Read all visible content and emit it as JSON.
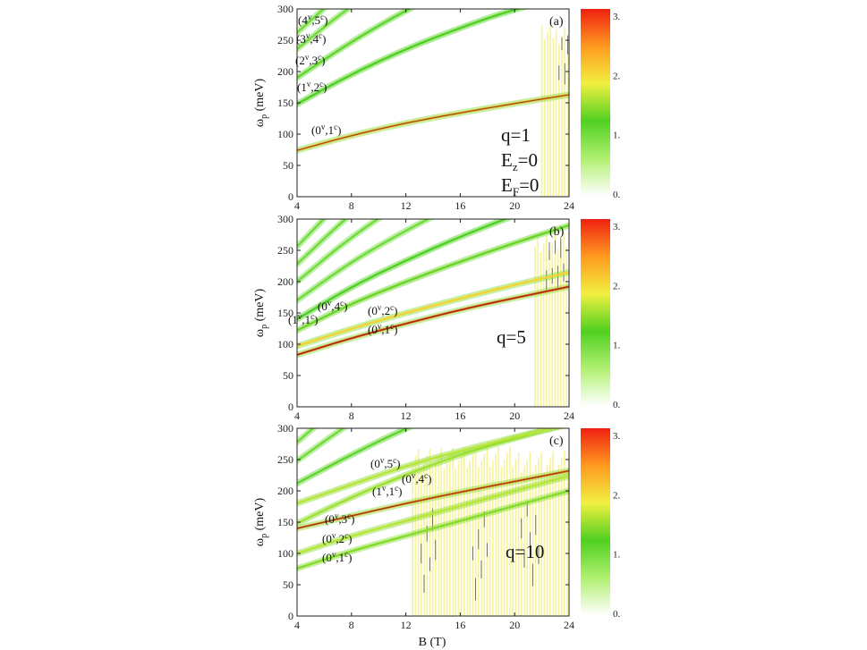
{
  "figure": {
    "xlabel": "B (T)",
    "colorbar_color_stops": [
      "#ffffff",
      "#b0f070",
      "#50d020",
      "#f0f040",
      "#ff9a20",
      "#ee2010"
    ]
  },
  "chart_data": [
    {
      "type": "heatmap",
      "panel_label": "(a)",
      "xlabel": "",
      "ylabel_main": "ω",
      "ylabel_sub": "p",
      "ylabel_unit": " (meV)",
      "xlim": [
        4,
        24
      ],
      "ylim": [
        0,
        300
      ],
      "xticks": [
        4,
        8,
        12,
        16,
        20,
        24
      ],
      "yticks": [
        0,
        50,
        100,
        150,
        200,
        250,
        300
      ],
      "colorbar_ticks": [
        "3.",
        "2.",
        "1.",
        "0."
      ],
      "params": [
        {
          "main": "q=1",
          "sub": ""
        },
        {
          "main": "E",
          "sub": "z",
          "tail": "=0"
        },
        {
          "main": "E",
          "sub": "F",
          "tail": "=0"
        }
      ],
      "series": [
        {
          "label": [
            "(0",
            "v",
            ",1",
            "c",
            ")"
          ],
          "x": [
            4,
            8,
            12,
            16,
            20,
            24
          ],
          "y": [
            74,
            98,
            118,
            134,
            149,
            163
          ],
          "intensity": 2.4
        },
        {
          "label": [
            "(1",
            "v",
            ",2",
            "c",
            ")"
          ],
          "x": [
            4,
            8,
            12,
            16,
            20,
            24
          ],
          "y": [
            148,
            196,
            236,
            270,
            300,
            320
          ],
          "intensity": 1.2
        },
        {
          "label": [
            "(2",
            "v",
            ",3",
            "c",
            ")"
          ],
          "x": [
            4,
            8,
            12,
            16,
            20,
            24
          ],
          "y": [
            190,
            248,
            298,
            340,
            370,
            395
          ],
          "intensity": 1.1
        },
        {
          "label": [
            "(3",
            "v",
            ",4",
            "c",
            ")"
          ],
          "x": [
            4,
            8,
            12,
            16,
            20,
            24
          ],
          "y": [
            236,
            306,
            360,
            400,
            440,
            470
          ],
          "intensity": 1.0
        },
        {
          "label": [
            "(4",
            "v",
            ",5",
            "c",
            ")"
          ],
          "x": [
            4,
            8,
            12,
            16,
            20,
            24
          ],
          "y": [
            262,
            340,
            400,
            450,
            490,
            520
          ],
          "intensity": 1.0
        }
      ],
      "damping_region": {
        "x_from": 22,
        "x_to": 24,
        "note": ""
      }
    },
    {
      "type": "heatmap",
      "panel_label": "(b)",
      "ylabel_main": "ω",
      "ylabel_sub": "p",
      "ylabel_unit": " (meV)",
      "xlim": [
        4,
        24
      ],
      "ylim": [
        0,
        300
      ],
      "xticks": [
        4,
        8,
        12,
        16,
        20,
        24
      ],
      "yticks": [
        0,
        50,
        100,
        150,
        200,
        250,
        300
      ],
      "colorbar_ticks": [
        "3.",
        "2.",
        "1.",
        "0."
      ],
      "params": [
        {
          "main": "q=5",
          "sub": ""
        }
      ],
      "series": [
        {
          "label": [
            "(0",
            "v",
            ",1",
            "c",
            ")"
          ],
          "x": [
            4,
            8,
            12,
            16,
            20,
            24
          ],
          "y": [
            83,
            110,
            133,
            155,
            174,
            192
          ],
          "intensity": 2.8
        },
        {
          "label": [
            "(0",
            "v",
            ",2",
            "c",
            ")"
          ],
          "x": [
            4,
            8,
            12,
            16,
            20,
            24
          ],
          "y": [
            97,
            125,
            150,
            173,
            195,
            215
          ],
          "intensity": 2.0
        },
        {
          "label": [
            "(1",
            "v",
            ",1",
            "c",
            ")"
          ],
          "x": [
            4,
            8,
            12,
            16,
            20,
            24
          ],
          "y": [
            122,
            165,
            200,
            232,
            262,
            290
          ],
          "intensity": 1.3
        },
        {
          "label": [
            "(0",
            "v",
            ",4",
            "c",
            ")"
          ],
          "x": [
            4,
            8,
            12,
            16,
            20,
            24
          ],
          "y": [
            140,
            192,
            234,
            272,
            306,
            338
          ],
          "intensity": 1.2
        },
        {
          "label": [],
          "x": [
            4,
            8,
            12,
            16,
            20,
            24
          ],
          "y": [
            170,
            232,
            282,
            326,
            366,
            402
          ],
          "intensity": 1.0
        },
        {
          "label": [],
          "x": [
            4,
            8,
            12,
            16,
            20,
            24
          ],
          "y": [
            200,
            272,
            330,
            380,
            426,
            468
          ],
          "intensity": 1.0
        },
        {
          "label": [],
          "x": [
            4,
            8,
            12,
            16,
            20,
            24
          ],
          "y": [
            228,
            310,
            376,
            432,
            484,
            530
          ],
          "intensity": 1.0
        },
        {
          "label": [],
          "x": [
            4,
            8,
            12,
            16,
            20,
            24
          ],
          "y": [
            256,
            346,
            420,
            484,
            540,
            592
          ],
          "intensity": 1.0
        }
      ],
      "damping_region": {
        "x_from": 21.5,
        "x_to": 24,
        "note": ""
      }
    },
    {
      "type": "heatmap",
      "panel_label": "(c)",
      "ylabel_main": "ω",
      "ylabel_sub": "p",
      "ylabel_unit": " (meV)",
      "xlim": [
        4,
        24
      ],
      "ylim": [
        0,
        300
      ],
      "xticks": [
        4,
        8,
        12,
        16,
        20,
        24
      ],
      "yticks": [
        0,
        50,
        100,
        150,
        200,
        250,
        300
      ],
      "colorbar_ticks": [
        "3.",
        "2.",
        "1.",
        "0."
      ],
      "params": [
        {
          "main": "q=10",
          "sub": ""
        }
      ],
      "series": [
        {
          "label": [
            "(0",
            "v",
            ",1",
            "c",
            ")"
          ],
          "x": [
            4,
            8,
            12,
            16,
            20,
            24
          ],
          "y": [
            76,
            104,
            128,
            152,
            176,
            200
          ],
          "intensity": 1.4
        },
        {
          "label": [
            "(0",
            "v",
            ",2",
            "c",
            ")"
          ],
          "x": [
            4,
            8,
            12,
            16,
            20,
            24
          ],
          "y": [
            100,
            128,
            152,
            176,
            200,
            224
          ],
          "intensity": 1.6
        },
        {
          "label": [
            "(0",
            "v",
            ",3",
            "c",
            ")"
          ],
          "x": [
            4,
            8,
            12,
            16,
            20,
            24
          ],
          "y": [
            140,
            160,
            180,
            198,
            215,
            232
          ],
          "intensity": 2.6
        },
        {
          "label": [
            "(1",
            "v",
            ",1",
            "c",
            ")"
          ],
          "x": [
            4,
            8,
            12,
            16,
            20,
            24
          ],
          "y": [
            148,
            190,
            226,
            258,
            284,
            308
          ],
          "intensity": 1.5
        },
        {
          "label": [
            "(0",
            "v",
            ",4",
            "c",
            ")"
          ],
          "x": [
            4,
            8,
            12,
            16,
            20,
            24
          ],
          "y": [
            180,
            210,
            240,
            264,
            286,
            306
          ],
          "intensity": 1.6
        },
        {
          "label": [
            "(0",
            "v",
            ",5",
            "c",
            ")"
          ],
          "x": [
            4,
            8,
            12,
            16,
            20,
            24
          ],
          "y": [
            212,
            258,
            300,
            336,
            370,
            400
          ],
          "intensity": 1.1
        },
        {
          "label": [],
          "x": [
            4,
            8,
            12,
            16,
            20,
            24
          ],
          "y": [
            248,
            310,
            362,
            408,
            450,
            488
          ],
          "intensity": 1.0
        },
        {
          "label": [],
          "x": [
            4,
            8,
            12,
            16,
            20,
            24
          ],
          "y": [
            278,
            352,
            414,
            468,
            516,
            560
          ],
          "intensity": 1.0
        }
      ],
      "damping_region": {
        "x_from": 12.5,
        "x_to": 24,
        "note": ""
      }
    }
  ]
}
